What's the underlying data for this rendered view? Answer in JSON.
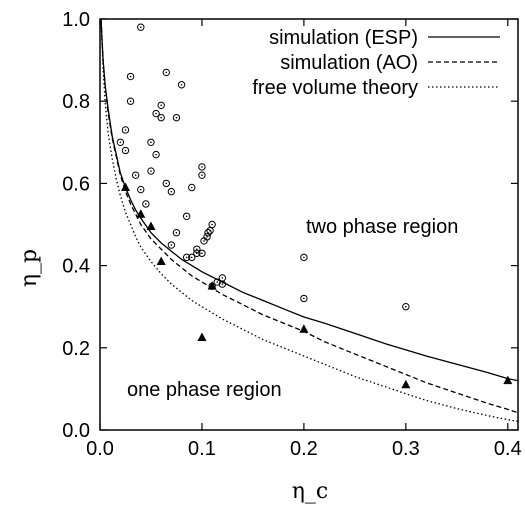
{
  "chart_data": {
    "type": "scatter",
    "xlabel": "η_c",
    "ylabel": "η_p",
    "xlim": [
      0.0,
      0.41
    ],
    "ylim": [
      0.0,
      1.0
    ],
    "xticks": [
      "0.0",
      "0.1",
      "0.2",
      "0.3",
      "0.4"
    ],
    "yticks": [
      "0.0",
      "0.2",
      "0.4",
      "0.6",
      "0.8",
      "1.0"
    ],
    "grid": false,
    "legend_position": "top-right",
    "legend": [
      {
        "label": "simulation (ESP)",
        "style": "solid"
      },
      {
        "label": "simulation (AO)",
        "style": "dashed"
      },
      {
        "label": "free volume theory",
        "style": "dotted"
      }
    ],
    "annotations": [
      {
        "text": "two phase region"
      },
      {
        "text": "one phase region"
      }
    ],
    "series": [
      {
        "name": "simulation (ESP)",
        "type": "line",
        "style": "solid",
        "x": [
          0.001,
          0.003,
          0.005,
          0.008,
          0.012,
          0.016,
          0.02,
          0.025,
          0.03,
          0.035,
          0.04,
          0.05,
          0.06,
          0.07,
          0.08,
          0.09,
          0.1,
          0.12,
          0.14,
          0.16,
          0.18,
          0.2,
          0.22,
          0.25,
          0.28,
          0.3,
          0.32,
          0.35,
          0.38,
          0.4,
          0.41
        ],
        "y": [
          1.0,
          0.9,
          0.84,
          0.78,
          0.715,
          0.67,
          0.625,
          0.59,
          0.56,
          0.535,
          0.515,
          0.48,
          0.455,
          0.435,
          0.415,
          0.4,
          0.385,
          0.36,
          0.335,
          0.315,
          0.295,
          0.275,
          0.26,
          0.235,
          0.21,
          0.195,
          0.18,
          0.16,
          0.14,
          0.125,
          0.12
        ]
      },
      {
        "name": "simulation (AO)",
        "type": "line",
        "style": "dashed",
        "x": [
          0.001,
          0.003,
          0.005,
          0.008,
          0.012,
          0.016,
          0.02,
          0.025,
          0.03,
          0.035,
          0.04,
          0.05,
          0.06,
          0.07,
          0.08,
          0.09,
          0.1,
          0.12,
          0.14,
          0.16,
          0.18,
          0.2,
          0.22,
          0.25,
          0.28,
          0.3,
          0.32,
          0.35,
          0.38,
          0.4,
          0.41
        ],
        "y": [
          1.0,
          0.9,
          0.84,
          0.77,
          0.71,
          0.665,
          0.62,
          0.58,
          0.55,
          0.525,
          0.5,
          0.465,
          0.44,
          0.415,
          0.395,
          0.375,
          0.36,
          0.33,
          0.305,
          0.28,
          0.26,
          0.24,
          0.215,
          0.185,
          0.155,
          0.135,
          0.115,
          0.09,
          0.065,
          0.05,
          0.042
        ]
      },
      {
        "name": "free volume theory",
        "type": "line",
        "style": "dotted",
        "x": [
          0.001,
          0.003,
          0.005,
          0.008,
          0.012,
          0.016,
          0.02,
          0.025,
          0.03,
          0.035,
          0.04,
          0.05,
          0.06,
          0.07,
          0.08,
          0.09,
          0.1,
          0.12,
          0.14,
          0.16,
          0.18,
          0.2,
          0.22,
          0.25,
          0.28,
          0.3,
          0.32,
          0.35,
          0.38,
          0.4,
          0.41
        ],
        "y": [
          1.0,
          0.88,
          0.8,
          0.72,
          0.66,
          0.61,
          0.57,
          0.53,
          0.5,
          0.47,
          0.445,
          0.41,
          0.38,
          0.355,
          0.335,
          0.315,
          0.3,
          0.27,
          0.245,
          0.22,
          0.2,
          0.18,
          0.16,
          0.13,
          0.105,
          0.088,
          0.072,
          0.052,
          0.035,
          0.025,
          0.021
        ]
      },
      {
        "name": "open circles",
        "type": "scatter",
        "marker": "open-circle",
        "x": [
          0.04,
          0.03,
          0.02,
          0.025,
          0.03,
          0.025,
          0.035,
          0.04,
          0.045,
          0.05,
          0.05,
          0.055,
          0.06,
          0.055,
          0.06,
          0.065,
          0.065,
          0.07,
          0.075,
          0.07,
          0.08,
          0.085,
          0.09,
          0.095,
          0.1,
          0.1,
          0.1,
          0.102,
          0.105,
          0.106,
          0.108,
          0.11,
          0.115,
          0.12,
          0.075,
          0.085,
          0.2,
          0.2,
          0.3,
          0.11,
          0.12,
          0.09,
          0.095
        ],
        "y": [
          0.98,
          0.86,
          0.7,
          0.73,
          0.8,
          0.68,
          0.62,
          0.585,
          0.55,
          0.7,
          0.63,
          0.67,
          0.76,
          0.77,
          0.79,
          0.87,
          0.6,
          0.58,
          0.76,
          0.45,
          0.84,
          0.52,
          0.59,
          0.44,
          0.64,
          0.62,
          0.43,
          0.46,
          0.47,
          0.48,
          0.485,
          0.5,
          0.36,
          0.37,
          0.48,
          0.42,
          0.42,
          0.32,
          0.3,
          0.35,
          0.355,
          0.42,
          0.43
        ]
      },
      {
        "name": "filled triangles",
        "type": "scatter",
        "marker": "filled-triangle",
        "x": [
          0.025,
          0.04,
          0.05,
          0.06,
          0.1,
          0.11,
          0.2,
          0.3,
          0.4
        ],
        "y": [
          0.59,
          0.525,
          0.495,
          0.41,
          0.225,
          0.35,
          0.245,
          0.11,
          0.12
        ]
      }
    ]
  }
}
